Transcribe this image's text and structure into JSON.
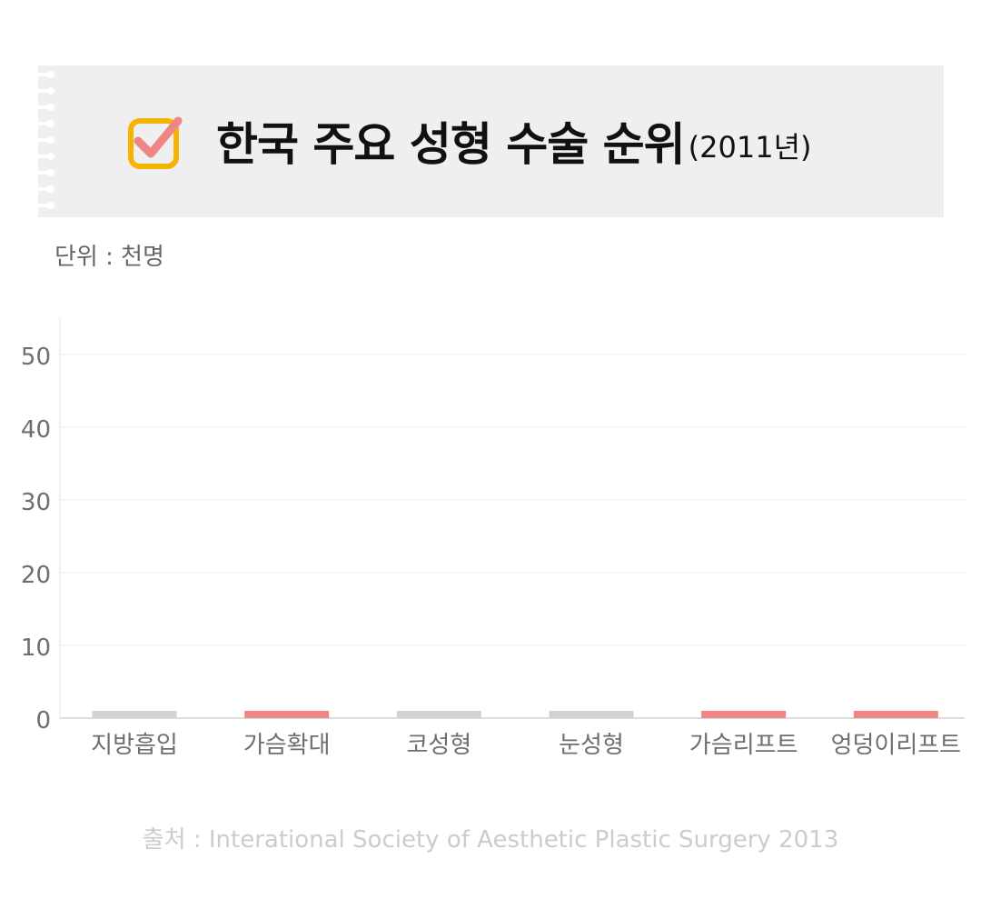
{
  "header": {
    "title": "한국 주요 성형 수술 순위",
    "title_year": "(2011년)"
  },
  "unit_label": "단위 : 천명",
  "source_text": "출처 : Interational Society of Aesthetic Plastic Surgery 2013",
  "colors": {
    "background": "#ffffff",
    "header_bg": "#efefef",
    "check_box": "#f5b400",
    "check_mark": "#ef8683",
    "bar_gray": "#d2d2d2",
    "bar_red": "#ef8683",
    "grid": "#eeeeee",
    "tick_text": "#6e6e6e",
    "source_text": "#cccccc"
  },
  "chart_data": {
    "type": "bar",
    "title": "",
    "xlabel": "",
    "ylabel": "",
    "ylim": [
      0,
      55
    ],
    "yticks": [
      0,
      10,
      20,
      30,
      40,
      50
    ],
    "grid": true,
    "categories": [
      "지방흡입",
      "가슴확대",
      "코성형",
      "눈성형",
      "가슴리프트",
      "엉덩이리프트"
    ],
    "values": [
      1,
      1,
      1,
      1,
      1,
      1
    ],
    "bar_colors": [
      "#d2d2d2",
      "#ef8683",
      "#d2d2d2",
      "#d2d2d2",
      "#ef8683",
      "#ef8683"
    ]
  }
}
